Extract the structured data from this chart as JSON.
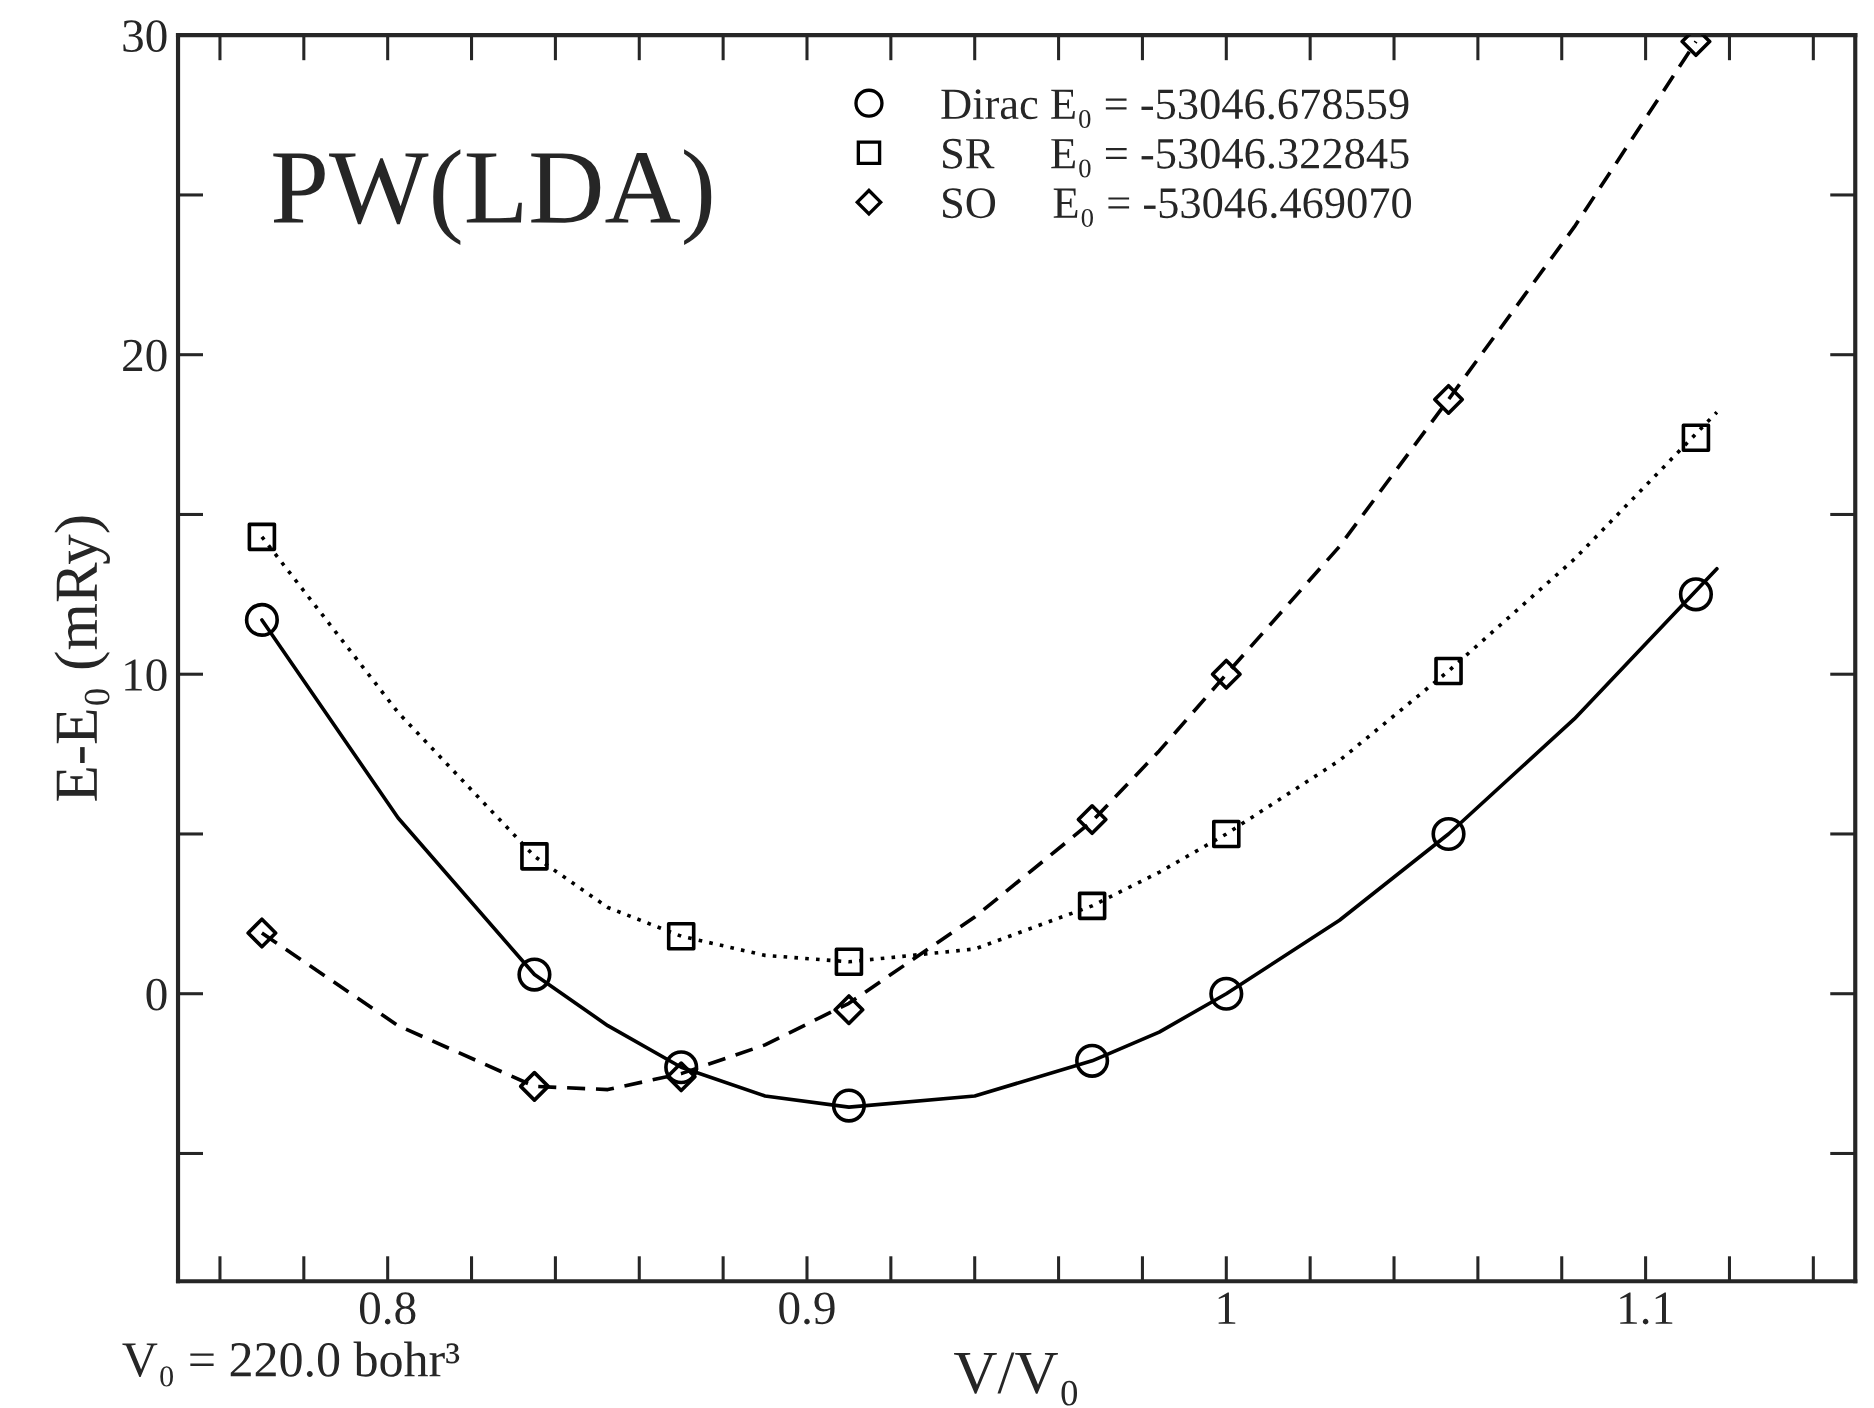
{
  "chart_data": {
    "type": "scatter",
    "title": "PW(LDA)",
    "xlabel": "V/V₀",
    "ylabel": "E-E₀ (mRy)",
    "annotations": [
      "V₀ = 220.0 bohr³"
    ],
    "x": [
      0.77,
      0.835,
      0.87,
      0.91,
      0.968,
      1.0,
      1.053,
      1.112
    ],
    "series": [
      {
        "name": "Dirac E₀ = -53046.678559",
        "color": "#000000",
        "marker": "circle",
        "values": [
          11.7,
          0.6,
          -2.3,
          -3.5,
          -2.1,
          0.0,
          5.0,
          12.5
        ]
      },
      {
        "name": "SR     E₀ = -53046.322845",
        "color": "#000000",
        "marker": "square",
        "values": [
          14.3,
          4.3,
          1.8,
          1.0,
          2.75,
          5.0,
          10.1,
          17.4
        ]
      },
      {
        "name": "SO     E₀ = -53046.469070",
        "color": "#000000",
        "marker": "diamond",
        "values": [
          1.9,
          -2.9,
          -2.6,
          -0.5,
          5.45,
          10.0,
          18.6,
          29.8
        ]
      },
      {
        "type": "line",
        "color": "#000000",
        "line_style": "solid",
        "x": [
          0.77,
          0.8025,
          0.835,
          0.8525,
          0.87,
          0.89,
          0.91,
          0.94,
          0.968,
          0.984,
          1.0,
          1.027,
          1.053,
          1.083,
          1.117
        ],
        "values": [
          11.7,
          5.5,
          0.6,
          -1.0,
          -2.3,
          -3.2,
          -3.55,
          -3.2,
          -2.1,
          -1.2,
          0.0,
          2.3,
          5.0,
          8.6,
          13.3
        ]
      },
      {
        "type": "line",
        "color": "#000000",
        "line_style": "dotted",
        "x": [
          0.77,
          0.8025,
          0.835,
          0.8525,
          0.87,
          0.89,
          0.91,
          0.94,
          0.968,
          0.984,
          1.0,
          1.027,
          1.053,
          1.083,
          1.117
        ],
        "values": [
          14.3,
          8.8,
          4.3,
          2.7,
          1.8,
          1.2,
          1.0,
          1.4,
          2.75,
          3.8,
          5.0,
          7.3,
          10.1,
          13.6,
          18.2
        ]
      },
      {
        "type": "line",
        "color": "#000000",
        "line_style": "dashed",
        "x": [
          0.77,
          0.8025,
          0.835,
          0.8525,
          0.87,
          0.89,
          0.91,
          0.94,
          0.968,
          0.984,
          1.0,
          1.027,
          1.053,
          1.083,
          1.112
        ],
        "values": [
          1.9,
          -1.0,
          -2.9,
          -3.0,
          -2.5,
          -1.6,
          -0.3,
          2.4,
          5.4,
          7.6,
          10.0,
          14.0,
          18.6,
          24.0,
          29.8
        ]
      }
    ],
    "xlim": [
      0.75,
      1.15
    ],
    "ylim": [
      -9,
      30
    ],
    "xticks": [
      {
        "value": 0.76,
        "label": null
      },
      {
        "value": 0.78,
        "label": null
      },
      0.8,
      {
        "value": 0.82,
        "label": null
      },
      {
        "value": 0.84,
        "label": null
      },
      {
        "value": 0.86,
        "label": null
      },
      {
        "value": 0.88,
        "label": null
      },
      0.9,
      {
        "value": 0.92,
        "label": null
      },
      {
        "value": 0.94,
        "label": null
      },
      {
        "value": 0.96,
        "label": null
      },
      {
        "value": 0.98,
        "label": null
      },
      1,
      {
        "value": 1.02,
        "label": null
      },
      {
        "value": 1.04,
        "label": null
      },
      {
        "value": 1.06,
        "label": null
      },
      {
        "value": 1.08,
        "label": null
      },
      1.1,
      {
        "value": 1.12,
        "label": null
      },
      {
        "value": 1.14,
        "label": null
      }
    ],
    "yticks": [
      {
        "value": -5,
        "label": null
      },
      0,
      {
        "value": 5,
        "label": null
      },
      10,
      {
        "value": 15,
        "label": null
      },
      20,
      {
        "value": 25,
        "label": null
      },
      30
    ],
    "legend": "top right"
  }
}
